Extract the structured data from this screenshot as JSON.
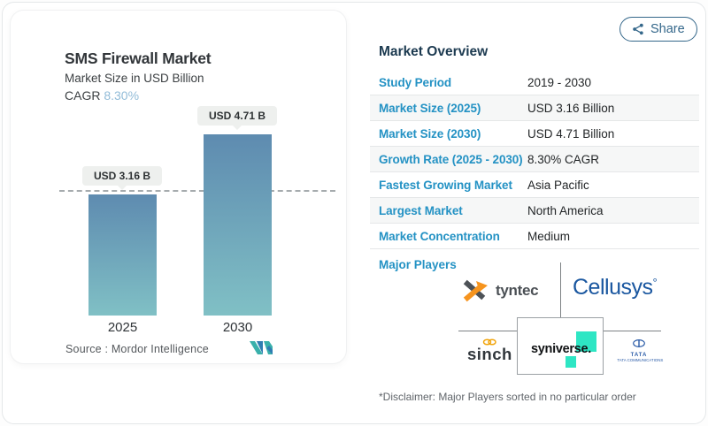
{
  "share": {
    "label": "Share"
  },
  "chart_card": {
    "title": "SMS Firewall Market",
    "subtitle": "Market Size in USD Billion",
    "cagr_label": "CAGR",
    "cagr_value": "8.30%",
    "source": "Source :  Mordor Intelligence"
  },
  "chart_data": {
    "type": "bar",
    "title": "SMS Firewall Market",
    "subtitle": "Market Size in USD Billion",
    "cagr": "8.30%",
    "categories": [
      "2025",
      "2030"
    ],
    "values": [
      3.16,
      4.71
    ],
    "value_labels": [
      "USD 3.16 B",
      "USD 4.71 B"
    ],
    "unit": "USD Billion",
    "ylim": [
      0,
      5
    ],
    "grid": "off",
    "legend": "none",
    "reference_line": {
      "at_value": 3.16,
      "style": "dashed"
    },
    "bar_gradient_top": "#5e8bb0",
    "bar_gradient_bottom": "#80c0c5"
  },
  "overview": {
    "heading": "Market Overview",
    "rows": [
      {
        "label": "Study Period",
        "value": "2019 - 2030"
      },
      {
        "label": "Market Size (2025)",
        "value": "USD 3.16 Billion"
      },
      {
        "label": "Market Size (2030)",
        "value": "USD 4.71 Billion"
      },
      {
        "label": "Growth Rate (2025 - 2030)",
        "value": "8.30% CAGR"
      },
      {
        "label": "Fastest Growing Market",
        "value": "Asia Pacific"
      },
      {
        "label": "Largest Market",
        "value": "North America"
      },
      {
        "label": "Market Concentration",
        "value": "Medium"
      }
    ],
    "major_players_label": "Major Players",
    "players": {
      "tyntec": "tyntec",
      "cellusys": "Cellusys",
      "cellusys_mark": "°",
      "sinch": "sinch",
      "syniverse": "syniverse.",
      "tata_name": "TATA",
      "tata_sub": "TATA COMMUNICATIONS"
    }
  },
  "disclaimer": "*Disclaimer: Major Players sorted in no particular order",
  "colors": {
    "accent_blue": "#2492c4",
    "heading_navy": "#1c3a50",
    "cagr_light_blue": "#92bcd8",
    "share_blue": "#34678a",
    "bar_gradient_top": "#5e8bb0",
    "bar_gradient_bottom": "#80c0c5",
    "chip_bg": "#eef0ee",
    "syniverse_teal": "#2ee6c4",
    "tyntec_orange": "#f6941e",
    "tyntec_gray": "#4d5257",
    "cellusys_blue": "#1a57a0",
    "tata_blue": "#2b5ca8",
    "mordor_teal": "#39b0ab",
    "mordor_blue": "#2f7db2"
  }
}
